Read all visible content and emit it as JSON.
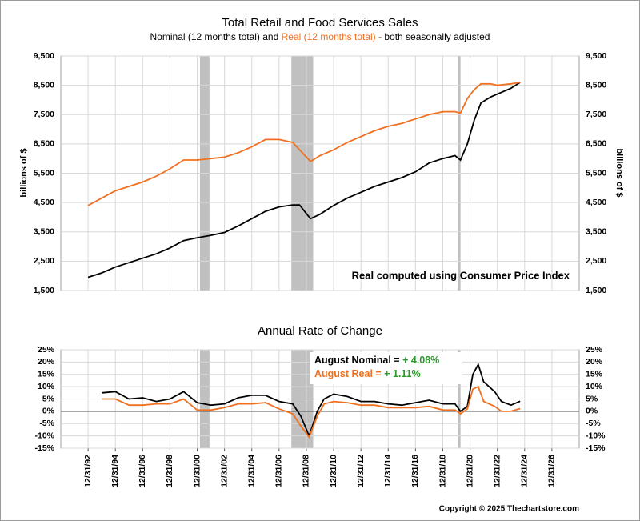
{
  "chart_data": [
    {
      "type": "line",
      "title": "Total Retail and Food Services Sales",
      "subtitle": [
        "Nominal (12 months total) and ",
        "Real (12 months total)",
        " - both seasonally adjusted"
      ],
      "y_label": "billions of $",
      "annotation": "Real computed using Consumer Price Index",
      "xlim": [
        1991,
        2029
      ],
      "xticks": [
        1993,
        1995,
        1997,
        1999,
        2001,
        2003,
        2005,
        2007,
        2009,
        2011,
        2013,
        2015,
        2017,
        2019,
        2021,
        2023,
        2025,
        2027
      ],
      "ylim": [
        1500,
        9500
      ],
      "yticks": [
        {
          "value": 1500,
          "label": "1,500"
        },
        {
          "value": 2500,
          "label": "2,500"
        },
        {
          "value": 3500,
          "label": "3,500"
        },
        {
          "value": 4500,
          "label": "4,500"
        },
        {
          "value": 5500,
          "label": "5,500"
        },
        {
          "value": 6500,
          "label": "6,500"
        },
        {
          "value": 7500,
          "label": "7,500"
        },
        {
          "value": 8500,
          "label": "8,500"
        },
        {
          "value": 9500,
          "label": "9,500"
        }
      ],
      "grid": true,
      "shaded_periods": [
        [
          2001.2,
          2001.9
        ],
        [
          2007.9,
          2009.5
        ],
        [
          2020.1,
          2020.3
        ]
      ],
      "x": [
        1993,
        1994,
        1995,
        1996,
        1997,
        1998,
        1999,
        2000,
        2001,
        2002,
        2003,
        2004,
        2005,
        2006,
        2007,
        2008,
        2008.5,
        2009.3,
        2010,
        2011,
        2012,
        2013,
        2014,
        2015,
        2016,
        2017,
        2018,
        2019,
        2019.9,
        2020.3,
        2020.8,
        2021.3,
        2021.8,
        2022.5,
        2023,
        2024,
        2024.67
      ],
      "series": [
        {
          "name": "Nominal",
          "color": "#000000",
          "values": [
            1950,
            2100,
            2300,
            2450,
            2600,
            2750,
            2950,
            3200,
            3300,
            3380,
            3480,
            3700,
            3950,
            4200,
            4350,
            4420,
            4420,
            3950,
            4100,
            4400,
            4650,
            4850,
            5050,
            5200,
            5350,
            5550,
            5850,
            6000,
            6100,
            5950,
            6500,
            7300,
            7900,
            8100,
            8200,
            8400,
            8600
          ]
        },
        {
          "name": "Real",
          "color": "#f07020",
          "values": [
            4400,
            4650,
            4900,
            5050,
            5200,
            5400,
            5650,
            5950,
            5950,
            6000,
            6050,
            6200,
            6400,
            6650,
            6650,
            6550,
            6300,
            5900,
            6100,
            6300,
            6550,
            6750,
            6950,
            7100,
            7200,
            7350,
            7500,
            7600,
            7600,
            7550,
            8050,
            8350,
            8550,
            8550,
            8500,
            8550,
            8600
          ]
        }
      ]
    },
    {
      "type": "line",
      "title": "Annual Rate of Change",
      "xlim": [
        1991,
        2029
      ],
      "xticks": [
        {
          "value": 1993,
          "label": "12/31/92"
        },
        {
          "value": 1995,
          "label": "12/31/94"
        },
        {
          "value": 1997,
          "label": "12/31/96"
        },
        {
          "value": 1999,
          "label": "12/31/98"
        },
        {
          "value": 2001,
          "label": "12/31/00"
        },
        {
          "value": 2003,
          "label": "12/31/02"
        },
        {
          "value": 2005,
          "label": "12/31/04"
        },
        {
          "value": 2007,
          "label": "12/31/06"
        },
        {
          "value": 2009,
          "label": "12/31/08"
        },
        {
          "value": 2011,
          "label": "12/31/10"
        },
        {
          "value": 2013,
          "label": "12/31/12"
        },
        {
          "value": 2015,
          "label": "12/31/14"
        },
        {
          "value": 2017,
          "label": "12/31/16"
        },
        {
          "value": 2019,
          "label": "12/31/18"
        },
        {
          "value": 2021,
          "label": "12/31/20"
        },
        {
          "value": 2023,
          "label": "12/31/22"
        },
        {
          "value": 2025,
          "label": "12/31/24"
        },
        {
          "value": 2027,
          "label": "12/31/26"
        }
      ],
      "ylim": [
        -15,
        25
      ],
      "yticks": [
        {
          "value": -15,
          "label": "-15%"
        },
        {
          "value": -10,
          "label": "-10%"
        },
        {
          "value": -5,
          "label": "-5%"
        },
        {
          "value": 0,
          "label": "0%"
        },
        {
          "value": 5,
          "label": "5%"
        },
        {
          "value": 10,
          "label": "10%"
        },
        {
          "value": 15,
          "label": "15%"
        },
        {
          "value": 20,
          "label": "20%"
        },
        {
          "value": 25,
          "label": "25%"
        }
      ],
      "grid": true,
      "shaded_periods": [
        [
          2001.2,
          2001.9
        ],
        [
          2007.9,
          2009.5
        ],
        [
          2020.1,
          2020.3
        ]
      ],
      "annotations": [
        {
          "text": "August Nominal = ",
          "value_label": "+ 4.08%",
          "color": "#000000"
        },
        {
          "text": "August Real = ",
          "value_label": "+ 1.11%",
          "color": "#f07020"
        }
      ],
      "value_label_color": "#2a9a2a",
      "x": [
        1994,
        1995,
        1996,
        1997,
        1998,
        1999,
        2000,
        2001,
        2002,
        2003,
        2004,
        2005,
        2006,
        2007,
        2008,
        2008.6,
        2009.2,
        2009.8,
        2010.3,
        2011,
        2012,
        2013,
        2014,
        2015,
        2016,
        2017,
        2018,
        2019,
        2019.9,
        2020.3,
        2020.8,
        2021.2,
        2021.6,
        2022,
        2022.8,
        2023.3,
        2024,
        2024.67
      ],
      "series": [
        {
          "name": "Nominal",
          "color": "#000000",
          "values": [
            7.5,
            8,
            5,
            5.5,
            4,
            5,
            8,
            3.5,
            2.5,
            3,
            5.5,
            6.5,
            6.5,
            4,
            3,
            -2,
            -10,
            0,
            5,
            7,
            6,
            4,
            4,
            3,
            2.5,
            3.5,
            4.5,
            3,
            3,
            0,
            2,
            15,
            19,
            12,
            8,
            4,
            2.5,
            4.08
          ]
        },
        {
          "name": "Real",
          "color": "#f07020",
          "values": [
            5,
            5,
            2.5,
            2.5,
            3,
            3,
            5,
            0.5,
            0.5,
            1.5,
            3,
            3,
            3.5,
            1,
            -1,
            -6,
            -10.5,
            -2,
            3,
            4,
            3.5,
            2.5,
            2.5,
            1.5,
            1.5,
            1.5,
            2,
            0.5,
            0.5,
            -1,
            1,
            9,
            10,
            4,
            2,
            0,
            0,
            1.11
          ]
        }
      ]
    }
  ],
  "footer": "Copyright © 2025 Thechartstore.com"
}
